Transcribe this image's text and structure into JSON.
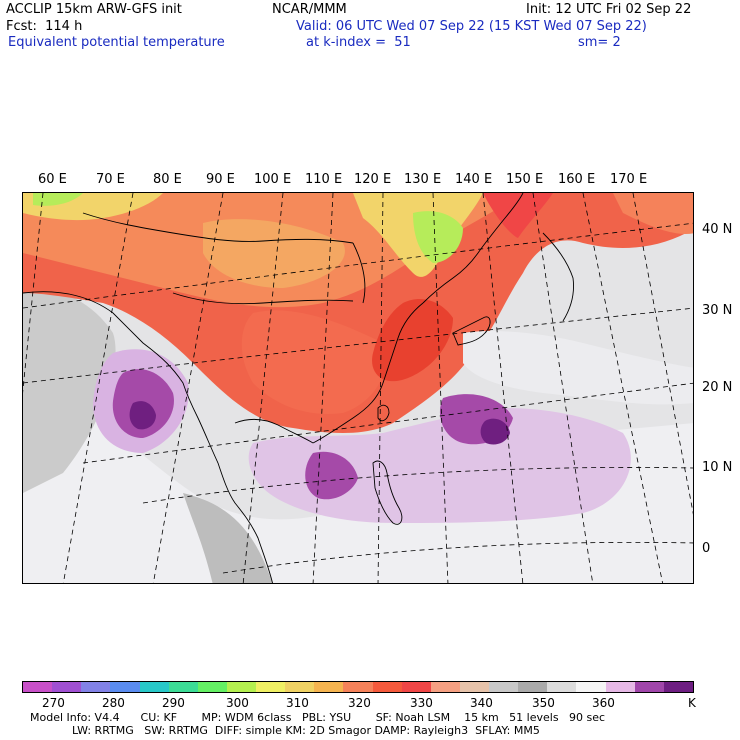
{
  "header": {
    "model": "ACCLIP 15km ARW-GFS init",
    "fcst": "Fcst:  114 h",
    "field": "Equivalent potential temperature",
    "center": "NCAR/MMM",
    "valid": "Valid: 06 UTC Wed 07 Sep 22 (15 KST Wed 07 Sep 22)",
    "kindex": "at k-index =  51",
    "sm": "sm= 2",
    "init": "Init: 12 UTC Fri 02 Sep 22"
  },
  "axes": {
    "lon_labels": [
      "60 E",
      "70 E",
      "80 E",
      "90 E",
      "100 E",
      "110 E",
      "120 E",
      "130 E",
      "140 E",
      "150 E",
      "160 E",
      "170 E"
    ],
    "lat_labels": [
      "40 N",
      "30 N",
      "20 N",
      "10 N",
      "0"
    ]
  },
  "colorbar": {
    "colors": [
      "#c850c8",
      "#a050d2",
      "#8282e6",
      "#5a8cf0",
      "#28c8c8",
      "#3cdc96",
      "#64f064",
      "#b4f050",
      "#f0f064",
      "#f0d264",
      "#f5b450",
      "#f5825a",
      "#f55a3c",
      "#f04646",
      "#f5a082",
      "#e6c3aa",
      "#c8c8c8",
      "#aaaaaa",
      "#dcdcdc",
      "#f5f5f5",
      "#e6b9e6",
      "#a046aa",
      "#6e1e82"
    ],
    "labels": [
      "270",
      "280",
      "290",
      "300",
      "310",
      "320",
      "330",
      "340",
      "350",
      "360",
      "K"
    ]
  },
  "footer": {
    "line1": "Model Info: V4.4      CU: KF       MP: WDM 6class   PBL: YSU       SF: Noah LSM    15 km   51 levels   90 sec",
    "line2": "LW: RRTMG   SW: RRTMG  DIFF: simple KM: 2D Smagor DAMP: Rayleigh3  SFLAY: MM5"
  }
}
